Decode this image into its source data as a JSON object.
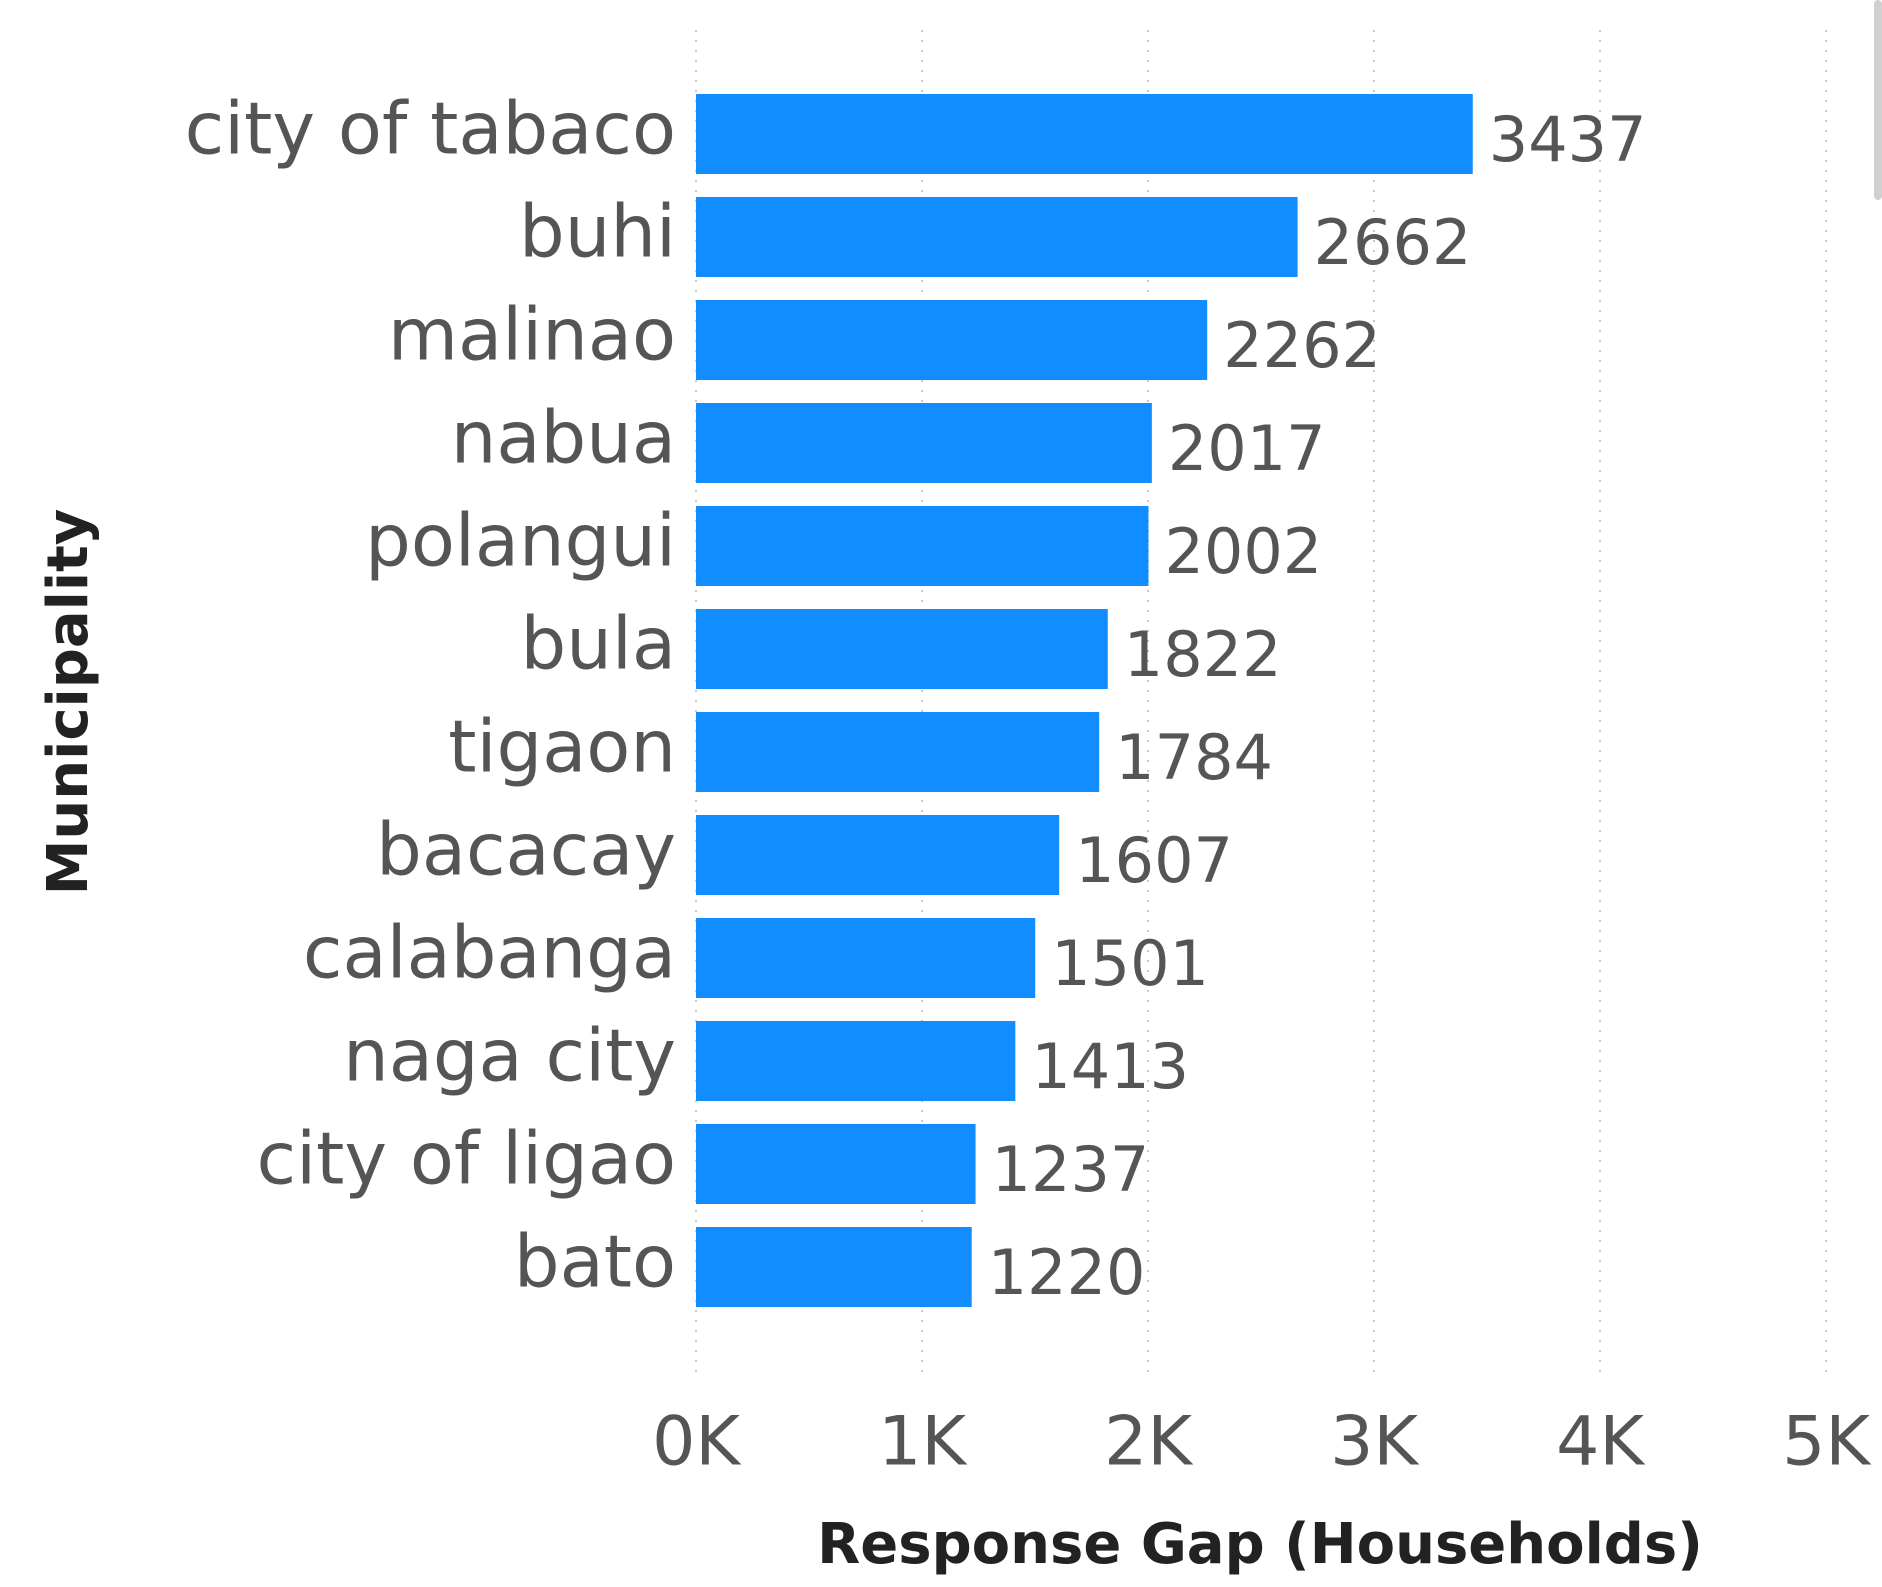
{
  "chart_data": {
    "type": "bar",
    "orientation": "horizontal",
    "xlabel": "Response Gap (Households)",
    "ylabel": "Municipality",
    "categories": [
      "city of tabaco",
      "buhi",
      "malinao",
      "nabua",
      "polangui",
      "bula",
      "tigaon",
      "bacacay",
      "calabanga",
      "naga city",
      "city of ligao",
      "bato"
    ],
    "values": [
      3437,
      2662,
      2262,
      2017,
      2002,
      1822,
      1784,
      1607,
      1501,
      1413,
      1237,
      1220
    ],
    "color": "#118dff",
    "xlim": [
      0,
      5000
    ],
    "xticks": [
      {
        "value": 0,
        "label": "0K"
      },
      {
        "value": 1000,
        "label": "1K"
      },
      {
        "value": 2000,
        "label": "2K"
      },
      {
        "value": 3000,
        "label": "3K"
      },
      {
        "value": 4000,
        "label": "4K"
      },
      {
        "value": 5000,
        "label": "5K"
      }
    ],
    "grid": true
  }
}
